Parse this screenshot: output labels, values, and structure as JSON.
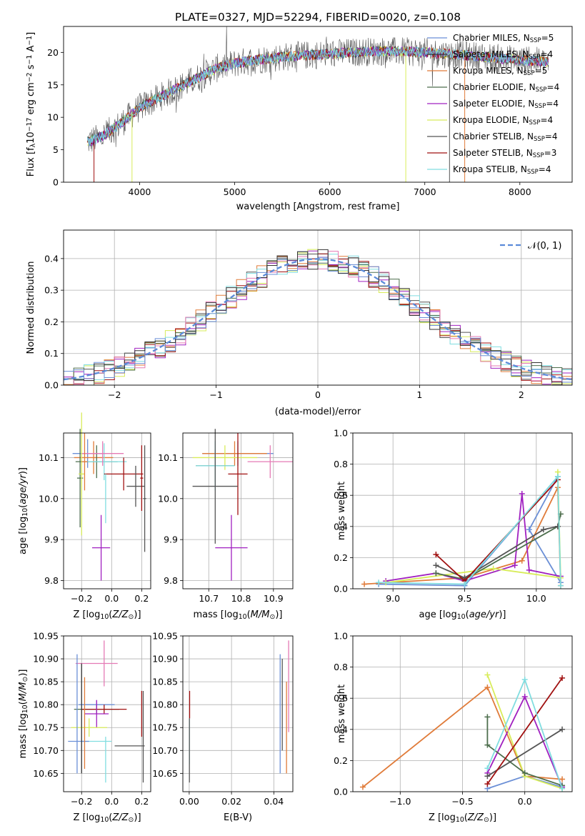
{
  "figure": {
    "title": "PLATE=0327, MJD=52294, FIBERID=0020, z=0.108"
  },
  "colors": {
    "chabrier_miles": "#6b8fd6",
    "salpeter_miles": "#333333",
    "kroupa_miles": "#e07b39",
    "chabrier_elodie": "#4d6e4d",
    "salpeter_elodie": "#a020c0",
    "kroupa_elodie": "#d8ec5a",
    "chabrier_stelib": "#555555",
    "salpeter_stelib": "#a01010",
    "kroupa_stelib": "#80dde0",
    "pink": "#e57ab5"
  },
  "chart_data": [
    {
      "id": "spectrum",
      "type": "line",
      "xlabel": "wavelength [Angstrom, rest frame]",
      "ylabel": "Flux [f_λ 10^-17 erg cm^-2 s^-1 A^-1]",
      "xlim": [
        3200,
        8550
      ],
      "ylim": [
        0,
        24
      ],
      "xticks": [
        4000,
        5000,
        6000,
        7000,
        8000
      ],
      "yticks": [
        0,
        5,
        10,
        15,
        20
      ],
      "legend_position": "top-right",
      "legend": [
        {
          "label": "Chabrier MILES, N",
          "sub": "SSP",
          "tail": "=5",
          "color": "#6b8fd6"
        },
        {
          "label": "Salpeter MILES, N",
          "sub": "SSP",
          "tail": "=4",
          "color": "#333333"
        },
        {
          "label": "Kroupa MILES, N",
          "sub": "SSP",
          "tail": "=5",
          "color": "#e07b39"
        },
        {
          "label": "Chabrier ELODIE, N",
          "sub": "SSP",
          "tail": "=4",
          "color": "#4d6e4d"
        },
        {
          "label": "Salpeter ELODIE, N",
          "sub": "SSP",
          "tail": "=4",
          "color": "#a020c0"
        },
        {
          "label": "Kroupa ELODIE, N",
          "sub": "SSP",
          "tail": "=4",
          "color": "#d8ec5a"
        },
        {
          "label": "Chabrier STELIB, N",
          "sub": "SSP",
          "tail": "=4",
          "color": "#555555"
        },
        {
          "label": "Salpeter STELIB, N",
          "sub": "SSP",
          "tail": "=3",
          "color": "#a01010"
        },
        {
          "label": "Kroupa STELIB, N",
          "sub": "SSP",
          "tail": "=4",
          "color": "#80dde0"
        }
      ],
      "continuum": [
        [
          3450,
          6.2
        ],
        [
          3600,
          7.0
        ],
        [
          3800,
          9.0
        ],
        [
          4000,
          11.5
        ],
        [
          4200,
          13.0
        ],
        [
          4400,
          14.5
        ],
        [
          4600,
          16.0
        ],
        [
          4800,
          17.5
        ],
        [
          5000,
          18.3
        ],
        [
          5200,
          18.8
        ],
        [
          5500,
          19.3
        ],
        [
          6000,
          19.8
        ],
        [
          6500,
          20.2
        ],
        [
          7000,
          20.0
        ],
        [
          7500,
          19.5
        ],
        [
          8000,
          18.8
        ],
        [
          8300,
          18.5
        ]
      ]
    },
    {
      "id": "residual-hist",
      "type": "histogram",
      "xlabel": "(data-model)/error",
      "ylabel": "Normed distribution",
      "xlim": [
        -2.5,
        2.5
      ],
      "ylim": [
        0,
        0.49
      ],
      "xticks": [
        -2,
        -1,
        0,
        1,
        2
      ],
      "yticks": [
        0.0,
        0.1,
        0.2,
        0.3,
        0.4
      ],
      "legend": {
        "label": "𝒩(0, 1)",
        "color": "#5b8bd9"
      },
      "bin_width": 0.1,
      "gaussian": {
        "mean": 0,
        "sigma": 1
      }
    },
    {
      "id": "age-vs-z",
      "type": "scatter",
      "xlabel": "Z [log10(Z/Z⊙)]",
      "ylabel": "age [log10(age/yr)]",
      "xlim": [
        -0.32,
        0.26
      ],
      "ylim": [
        9.78,
        10.16
      ],
      "xticks": [
        -0.2,
        0.0,
        0.2
      ],
      "yticks": [
        9.8,
        9.9,
        10.0,
        10.1
      ],
      "points": [
        {
          "x": -0.16,
          "y": 10.11,
          "xerr": 0.1,
          "yerr": 0.035,
          "color": "#6b8fd6"
        },
        {
          "x": -0.12,
          "y": 10.1,
          "xerr": 0.13,
          "yerr": 0.04,
          "color": "#e07b39"
        },
        {
          "x": -0.1,
          "y": 10.09,
          "xerr": 0.14,
          "yerr": 0.04,
          "color": "#4d6e4d"
        },
        {
          "x": -0.05,
          "y": 10.09,
          "xerr": 0.15,
          "yerr": 0.045,
          "color": "#80dde0"
        },
        {
          "x": -0.07,
          "y": 9.88,
          "xerr": 0.06,
          "yerr": 0.08,
          "color": "#a020c0"
        },
        {
          "x": -0.06,
          "y": 10.11,
          "xerr": 0.14,
          "yerr": 0.03,
          "color": "#e57ab5"
        },
        {
          "x": 0.08,
          "y": 10.06,
          "xerr": 0.13,
          "yerr": 0.04,
          "color": "#a01010"
        },
        {
          "x": 0.16,
          "y": 10.03,
          "xerr": 0.06,
          "yerr": 0.05,
          "color": "#555555"
        },
        {
          "x": -0.21,
          "y": 10.05,
          "xerr": 0.02,
          "yerr": 0.12,
          "color": "#4d6e4d"
        },
        {
          "x": -0.2,
          "y": 10.06,
          "xerr": 0.02,
          "yerr": 0.15,
          "color": "#d8ec5a"
        },
        {
          "x": -0.18,
          "y": 10.09,
          "xerr": 0.02,
          "yerr": 0.07,
          "color": "#e07b39"
        },
        {
          "x": 0.22,
          "y": 10.0,
          "xerr": 0.01,
          "yerr": 0.13,
          "color": "#555555"
        },
        {
          "x": 0.2,
          "y": 10.05,
          "xerr": 0.01,
          "yerr": 0.08,
          "color": "#a01010"
        },
        {
          "x": -0.04,
          "y": 10.0,
          "xerr": 0.0,
          "yerr": 0.06,
          "color": "#80dde0"
        }
      ]
    },
    {
      "id": "age-vs-mass",
      "type": "scatter",
      "xlabel": "mass [log10(M/M⊙)]",
      "ylabel": "",
      "xlim": [
        10.62,
        10.96
      ],
      "ylim": [
        9.78,
        10.16
      ],
      "xticks": [
        10.7,
        10.8,
        10.9
      ],
      "yticks": [
        9.8,
        9.9,
        10.0,
        10.1
      ],
      "points": [
        {
          "x": 10.79,
          "y": 10.11,
          "xerr": 0.11,
          "yerr": 0.03,
          "color": "#6b8fd6"
        },
        {
          "x": 10.78,
          "y": 10.11,
          "xerr": 0.1,
          "yerr": 0.03,
          "color": "#e07b39"
        },
        {
          "x": 10.75,
          "y": 10.1,
          "xerr": 0.1,
          "yerr": 0.03,
          "color": "#d8ec5a"
        },
        {
          "x": 10.72,
          "y": 10.08,
          "xerr": 0.06,
          "yerr": 0.04,
          "color": "#4d6e4d"
        },
        {
          "x": 10.72,
          "y": 10.08,
          "xerr": 0.06,
          "yerr": 0.06,
          "color": "#80dde0"
        },
        {
          "x": 10.89,
          "y": 10.09,
          "xerr": 0.07,
          "yerr": 0.04,
          "color": "#e57ab5"
        },
        {
          "x": 10.79,
          "y": 10.06,
          "xerr": 0.03,
          "yerr": 0.1,
          "color": "#a01010"
        },
        {
          "x": 10.72,
          "y": 10.03,
          "xerr": 0.07,
          "yerr": 0.14,
          "color": "#555555"
        },
        {
          "x": 10.77,
          "y": 9.88,
          "xerr": 0.05,
          "yerr": 0.08,
          "color": "#a020c0"
        }
      ]
    },
    {
      "id": "massweight-vs-age",
      "type": "line",
      "xlabel": "age [log10(age/yr)]",
      "ylabel": "mass weight",
      "xlim": [
        8.72,
        10.25
      ],
      "ylim": [
        0,
        1
      ],
      "xticks": [
        9.0,
        9.5,
        10.0
      ],
      "yticks": [
        0.0,
        0.2,
        0.4,
        0.6,
        0.8,
        1.0
      ],
      "series": [
        {
          "color": "#6b8fd6",
          "x": [
            8.9,
            9.5,
            10.15,
            9.95,
            10.17
          ],
          "y": [
            0.03,
            0.02,
            0.72,
            0.38,
            0.04
          ]
        },
        {
          "color": "#e07b39",
          "x": [
            8.8,
            9.5,
            9.9,
            10.15,
            10.17
          ],
          "y": [
            0.03,
            0.07,
            0.18,
            0.65,
            0.02
          ]
        },
        {
          "color": "#a020c0",
          "x": [
            8.95,
            9.3,
            9.5,
            9.85,
            9.9,
            9.95,
            10.17
          ],
          "y": [
            0.05,
            0.1,
            0.05,
            0.15,
            0.61,
            0.12,
            0.08
          ]
        },
        {
          "color": "#d8ec5a",
          "x": [
            8.95,
            9.7,
            10.17,
            10.15
          ],
          "y": [
            0.04,
            0.13,
            0.07,
            0.75
          ]
        },
        {
          "color": "#4d6e4d",
          "x": [
            9.3,
            9.5,
            10.15,
            10.17
          ],
          "y": [
            0.1,
            0.06,
            0.4,
            0.48
          ]
        },
        {
          "color": "#555555",
          "x": [
            9.3,
            9.5,
            10.05,
            10.15
          ],
          "y": [
            0.15,
            0.07,
            0.38,
            0.4
          ]
        },
        {
          "color": "#a01010",
          "x": [
            9.3,
            9.5,
            10.15
          ],
          "y": [
            0.22,
            0.05,
            0.7
          ]
        },
        {
          "color": "#80dde0",
          "x": [
            8.9,
            9.5,
            10.15,
            10.17
          ],
          "y": [
            0.04,
            0.03,
            0.72,
            0.02
          ]
        }
      ]
    },
    {
      "id": "mass-vs-z",
      "type": "scatter",
      "xlabel": "Z [log10(Z/Z⊙)]",
      "ylabel": "mass [log10(M/M⊙)]",
      "xlim": [
        -0.32,
        0.26
      ],
      "ylim": [
        10.61,
        10.95
      ],
      "xticks": [
        -0.2,
        0.0,
        0.2
      ],
      "yticks": [
        10.65,
        10.7,
        10.75,
        10.8,
        10.85,
        10.9,
        10.95
      ],
      "points": [
        {
          "x": -0.1,
          "y": 10.89,
          "xerr": 0.14,
          "yerr": 0.0,
          "color": "#e57ab5"
        },
        {
          "x": -0.05,
          "y": 10.89,
          "xerr": 0.0,
          "yerr": 0.05,
          "color": "#e57ab5"
        },
        {
          "x": -0.1,
          "y": 10.8,
          "xerr": 0.12,
          "yerr": 0.01,
          "color": "#6b8fd6"
        },
        {
          "x": -0.1,
          "y": 10.79,
          "xerr": 0.15,
          "yerr": 0.01,
          "color": "#4d6e4d"
        },
        {
          "x": -0.05,
          "y": 10.79,
          "xerr": 0.15,
          "yerr": 0.01,
          "color": "#a01010"
        },
        {
          "x": -0.1,
          "y": 10.78,
          "xerr": 0.08,
          "yerr": 0.03,
          "color": "#a020c0"
        },
        {
          "x": -0.15,
          "y": 10.75,
          "xerr": 0.12,
          "yerr": 0.02,
          "color": "#d8ec5a"
        },
        {
          "x": -0.1,
          "y": 10.72,
          "xerr": 0.1,
          "yerr": 0.0,
          "color": "#80dde0"
        },
        {
          "x": -0.22,
          "y": 10.72,
          "xerr": 0.07,
          "yerr": 0.0,
          "color": "#6b8fd6"
        },
        {
          "x": 0.12,
          "y": 10.71,
          "xerr": 0.1,
          "yerr": 0.0,
          "color": "#555555"
        },
        {
          "x": -0.23,
          "y": 10.78,
          "xerr": 0.0,
          "yerr": 0.13,
          "color": "#6b8fd6"
        },
        {
          "x": -0.2,
          "y": 10.77,
          "xerr": 0.0,
          "yerr": 0.12,
          "color": "#333333"
        },
        {
          "x": -0.18,
          "y": 10.76,
          "xerr": 0.0,
          "yerr": 0.1,
          "color": "#e07b39"
        },
        {
          "x": 0.21,
          "y": 10.73,
          "xerr": 0.0,
          "yerr": 0.1,
          "color": "#555555"
        },
        {
          "x": 0.2,
          "y": 10.78,
          "xerr": 0.0,
          "yerr": 0.05,
          "color": "#a01010"
        },
        {
          "x": -0.04,
          "y": 10.68,
          "xerr": 0.0,
          "yerr": 0.05,
          "color": "#80dde0"
        }
      ]
    },
    {
      "id": "mass-vs-ebv",
      "type": "scatter",
      "xlabel": "E(B-V)",
      "ylabel": "",
      "xlim": [
        -0.003,
        0.049
      ],
      "ylim": [
        10.61,
        10.95
      ],
      "xticks": [
        0.0,
        0.02,
        0.04
      ],
      "yticks": [
        10.65,
        10.7,
        10.75,
        10.8,
        10.85,
        10.9,
        10.95
      ],
      "points": [
        {
          "x": 0.0002,
          "y": 10.8,
          "xerr": 0.0,
          "yerr": 0.03,
          "color": "#a01010"
        },
        {
          "x": 0.0001,
          "y": 10.72,
          "xerr": 0.0,
          "yerr": 0.05,
          "color": "#80dde0"
        },
        {
          "x": 0.0001,
          "y": 10.7,
          "xerr": 0.0,
          "yerr": 0.07,
          "color": "#555555"
        },
        {
          "x": 0.043,
          "y": 10.78,
          "xerr": 0.0,
          "yerr": 0.13,
          "color": "#6b8fd6"
        },
        {
          "x": 0.044,
          "y": 10.8,
          "xerr": 0.0,
          "yerr": 0.1,
          "color": "#555555"
        },
        {
          "x": 0.046,
          "y": 10.75,
          "xerr": 0.0,
          "yerr": 0.1,
          "color": "#e07b39"
        },
        {
          "x": 0.047,
          "y": 10.84,
          "xerr": 0.0,
          "yerr": 0.1,
          "color": "#e57ab5"
        }
      ]
    },
    {
      "id": "massweight-vs-z",
      "type": "line",
      "xlabel": "Z [log10(Z/Z⊙)]",
      "ylabel": "mass weight",
      "xlim": [
        -1.38,
        0.38
      ],
      "ylim": [
        0,
        1
      ],
      "xticks": [
        -1.0,
        -0.5,
        0.0
      ],
      "yticks": [
        0.0,
        0.2,
        0.4,
        0.6,
        0.8,
        1.0
      ],
      "series": [
        {
          "color": "#e07b39",
          "x": [
            -1.3,
            -0.3,
            0.0,
            0.3
          ],
          "y": [
            0.03,
            0.67,
            0.1,
            0.08
          ]
        },
        {
          "color": "#6b8fd6",
          "x": [
            -0.3,
            0.0,
            0.3
          ],
          "y": [
            0.02,
            0.1,
            0.03
          ]
        },
        {
          "color": "#a020c0",
          "x": [
            -0.3,
            0.0,
            0.3
          ],
          "y": [
            0.12,
            0.61,
            0.03
          ]
        },
        {
          "color": "#d8ec5a",
          "x": [
            -0.3,
            0.0,
            0.3
          ],
          "y": [
            0.75,
            0.1,
            0.02
          ]
        },
        {
          "color": "#4d6e4d",
          "x": [
            -0.3,
            -0.3,
            0.0,
            0.3
          ],
          "y": [
            0.48,
            0.3,
            0.12,
            0.04
          ]
        },
        {
          "color": "#555555",
          "x": [
            -0.3,
            0.3
          ],
          "y": [
            0.1,
            0.4
          ]
        },
        {
          "color": "#a01010",
          "x": [
            -0.3,
            0.3
          ],
          "y": [
            0.05,
            0.73
          ]
        },
        {
          "color": "#80dde0",
          "x": [
            -0.3,
            0.0,
            0.3
          ],
          "y": [
            0.15,
            0.72,
            0.02
          ]
        }
      ]
    }
  ]
}
